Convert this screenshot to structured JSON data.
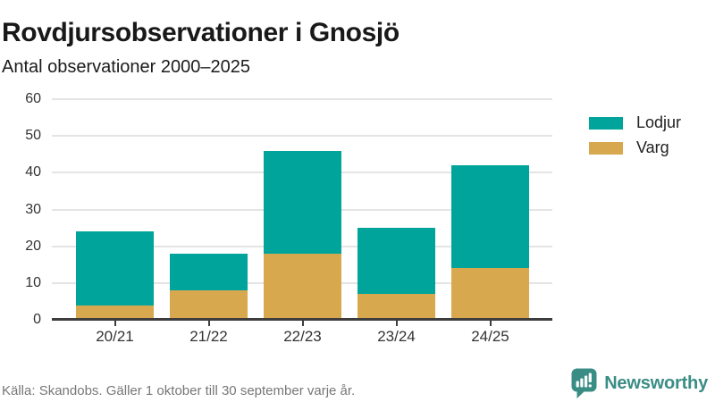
{
  "header": {
    "title": "Rovdjursobservationer i Gnosjö",
    "subtitle": "Antal observationer 2000–2025"
  },
  "chart_data": {
    "type": "bar",
    "stacked": true,
    "categories": [
      "20/21",
      "21/22",
      "22/23",
      "23/24",
      "24/25"
    ],
    "series": [
      {
        "name": "Lodjur",
        "color": "#00a49a",
        "values": [
          20,
          10,
          28,
          18,
          28
        ]
      },
      {
        "name": "Varg",
        "color": "#d8a84e",
        "values": [
          4,
          8,
          18,
          7,
          14
        ]
      }
    ],
    "totals": [
      24,
      18,
      46,
      25,
      42
    ],
    "ylim": [
      0,
      60
    ],
    "yticks": [
      0,
      10,
      20,
      30,
      40,
      50,
      60
    ],
    "xlabel": "",
    "ylabel": "",
    "grid": true,
    "legend_position": "right"
  },
  "footer": {
    "source": "Källa: Skandobs. Gäller 1 oktober till 30 september varje år.",
    "brand": "Newsworthy"
  },
  "colors": {
    "lodjur_teal": "#00a49a",
    "varg_gold": "#d8a84e",
    "brand_teal": "#3a8d85",
    "axis_dark": "#3d3d3d",
    "gridline_gray": "#e4e4e4"
  }
}
